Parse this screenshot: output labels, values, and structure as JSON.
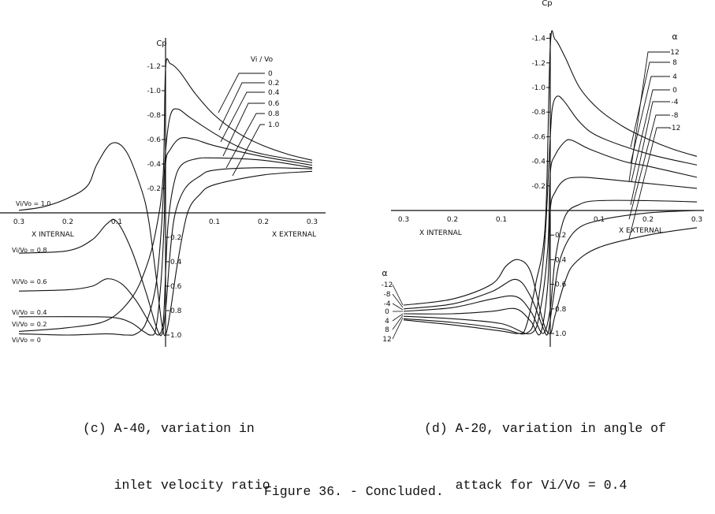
{
  "chart_data": [
    {
      "type": "line",
      "caption": [
        "(c) A-40, variation in",
        "    inlet velocity ratio"
      ],
      "ylabel": "Cp",
      "x_labels": {
        "internal": "X INTERNAL",
        "external": "X EXTERNAL"
      },
      "x_ticks": {
        "internal": [
          "0.3",
          "0.2",
          "0.1"
        ],
        "external": [
          "0.1",
          "0.2",
          "0.3"
        ]
      },
      "y_ticks_negative": [
        "-1.2",
        "-1.0",
        "-0.8",
        "-0.6",
        "-0.4",
        "-0.2"
      ],
      "y_ticks_positive": [
        "0.2",
        "0.4",
        "0.6",
        "0.8",
        "1.0"
      ],
      "xlim": [
        -0.3,
        0.3
      ],
      "ylim": [
        1.0,
        -1.3
      ],
      "y_inverted": true,
      "x_note": "negative x = internal side, positive x = external side",
      "legend_title": "Vi / Vo",
      "legend_values": [
        "0",
        "0.2",
        "0.4",
        "0.6",
        "0.8",
        "1.0"
      ],
      "internal_labels": [
        "Vi/Vo = 1.0",
        "Vi/Vo = 0.8",
        "Vi/Vo = 0.6",
        "Vi/Vo = 0.4",
        "Vi/Vo = 0.2",
        "Vi/Vo = 0"
      ],
      "series": [
        {
          "name": "0",
          "points": [
            [
              -0.3,
              0.97
            ],
            [
              -0.2,
              0.94
            ],
            [
              -0.12,
              0.88
            ],
            [
              -0.07,
              0.7
            ],
            [
              -0.04,
              0.45
            ],
            [
              -0.02,
              0.15
            ],
            [
              -0.005,
              -0.3
            ],
            [
              0,
              -1.18
            ],
            [
              0.01,
              -1.22
            ],
            [
              0.03,
              -1.15
            ],
            [
              0.06,
              -0.98
            ],
            [
              0.1,
              -0.8
            ],
            [
              0.15,
              -0.65
            ],
            [
              0.2,
              -0.55
            ],
            [
              0.25,
              -0.48
            ],
            [
              0.3,
              -0.43
            ]
          ]
        },
        {
          "name": "0.2",
          "points": [
            [
              -0.3,
              0.99
            ],
            [
              -0.2,
              1.0
            ],
            [
              -0.12,
              0.99
            ],
            [
              -0.08,
              1.0
            ],
            [
              -0.06,
              0.99
            ],
            [
              -0.04,
              0.9
            ],
            [
              -0.02,
              0.6
            ],
            [
              -0.008,
              0.1
            ],
            [
              0,
              -0.5
            ],
            [
              0.01,
              -0.8
            ],
            [
              0.025,
              -0.85
            ],
            [
              0.05,
              -0.78
            ],
            [
              0.1,
              -0.65
            ],
            [
              0.15,
              -0.54
            ],
            [
              0.2,
              -0.48
            ],
            [
              0.3,
              -0.41
            ]
          ]
        },
        {
          "name": "0.4",
          "points": [
            [
              -0.3,
              0.85
            ],
            [
              -0.15,
              0.85
            ],
            [
              -0.1,
              0.86
            ],
            [
              -0.07,
              0.9
            ],
            [
              -0.045,
              0.97
            ],
            [
              -0.03,
              1.0
            ],
            [
              -0.02,
              0.95
            ],
            [
              -0.01,
              0.6
            ],
            [
              -0.003,
              0.1
            ],
            [
              0,
              -0.4
            ],
            [
              0.01,
              -0.52
            ],
            [
              0.03,
              -0.61
            ],
            [
              0.06,
              -0.6
            ],
            [
              0.1,
              -0.55
            ],
            [
              0.2,
              -0.46
            ],
            [
              0.3,
              -0.39
            ]
          ]
        },
        {
          "name": "0.6",
          "points": [
            [
              -0.3,
              0.64
            ],
            [
              -0.2,
              0.63
            ],
            [
              -0.15,
              0.6
            ],
            [
              -0.12,
              0.54
            ],
            [
              -0.09,
              0.58
            ],
            [
              -0.06,
              0.72
            ],
            [
              -0.03,
              0.92
            ],
            [
              -0.015,
              1.0
            ],
            [
              -0.005,
              0.9
            ],
            [
              0,
              0.5
            ],
            [
              0.005,
              0.1
            ],
            [
              0.015,
              -0.2
            ],
            [
              0.03,
              -0.38
            ],
            [
              0.06,
              -0.44
            ],
            [
              0.1,
              -0.45
            ],
            [
              0.2,
              -0.43
            ],
            [
              0.3,
              -0.37
            ]
          ]
        },
        {
          "name": "0.8",
          "points": [
            [
              -0.3,
              0.33
            ],
            [
              -0.2,
              0.31
            ],
            [
              -0.15,
              0.22
            ],
            [
              -0.12,
              0.09
            ],
            [
              -0.1,
              0.07
            ],
            [
              -0.07,
              0.3
            ],
            [
              -0.04,
              0.65
            ],
            [
              -0.02,
              0.92
            ],
            [
              -0.008,
              1.0
            ],
            [
              0,
              0.8
            ],
            [
              0.01,
              0.3
            ],
            [
              0.02,
              0.0
            ],
            [
              0.04,
              -0.2
            ],
            [
              0.07,
              -0.3
            ],
            [
              0.1,
              -0.35
            ],
            [
              0.2,
              -0.37
            ],
            [
              0.3,
              -0.36
            ]
          ]
        },
        {
          "name": "1.0",
          "points": [
            [
              -0.3,
              -0.02
            ],
            [
              -0.25,
              -0.05
            ],
            [
              -0.2,
              -0.12
            ],
            [
              -0.16,
              -0.22
            ],
            [
              -0.14,
              -0.4
            ],
            [
              -0.11,
              -0.57
            ],
            [
              -0.08,
              -0.5
            ],
            [
              -0.05,
              -0.2
            ],
            [
              -0.035,
              0.05
            ],
            [
              -0.02,
              0.5
            ],
            [
              -0.008,
              0.9
            ],
            [
              0,
              1.0
            ],
            [
              0.01,
              0.8
            ],
            [
              0.025,
              0.4
            ],
            [
              0.045,
              0.0
            ],
            [
              0.07,
              -0.15
            ],
            [
              0.1,
              -0.23
            ],
            [
              0.2,
              -0.31
            ],
            [
              0.3,
              -0.34
            ]
          ]
        }
      ]
    },
    {
      "type": "line",
      "caption": [
        "(d) A-20, variation in angle of",
        "    attack for Vi/Vo = 0.4"
      ],
      "ylabel": "Cp",
      "x_labels": {
        "internal": "X INTERNAL",
        "external": "X EXTERNAL"
      },
      "x_ticks": {
        "internal": [
          "0.3",
          "0.2",
          "0.1"
        ],
        "external": [
          "0.1",
          "0.2",
          "0.3"
        ]
      },
      "y_ticks_negative": [
        "-1.4",
        "-1.2",
        "-1.0",
        "-0.8",
        "-0.6",
        "-0.4",
        "-0.2"
      ],
      "y_ticks_positive": [
        "0.2",
        "0.4",
        "0.6",
        "0.8",
        "1.0"
      ],
      "xlim": [
        -0.3,
        0.3
      ],
      "ylim": [
        1.0,
        -1.45
      ],
      "y_inverted": true,
      "legend_title": "α",
      "legend_values": [
        "12",
        "8",
        "4",
        "0",
        "-4",
        "-8",
        "-12"
      ],
      "internal_legend_title": "α",
      "internal_legend_values": [
        "-12",
        "-8",
        "-4",
        "0",
        "4",
        "8",
        "12"
      ],
      "series": [
        {
          "name": "12",
          "points": [
            [
              -0.3,
              0.89
            ],
            [
              -0.2,
              0.93
            ],
            [
              -0.1,
              0.98
            ],
            [
              -0.065,
              1.0
            ],
            [
              -0.05,
              0.95
            ],
            [
              -0.03,
              0.6
            ],
            [
              -0.01,
              0.1
            ],
            [
              0,
              -1.33
            ],
            [
              0.01,
              -1.39
            ],
            [
              0.03,
              -1.25
            ],
            [
              0.06,
              -1.0
            ],
            [
              0.1,
              -0.82
            ],
            [
              0.15,
              -0.68
            ],
            [
              0.2,
              -0.58
            ],
            [
              0.25,
              -0.5
            ],
            [
              0.3,
              -0.44
            ]
          ]
        },
        {
          "name": "8",
          "points": [
            [
              -0.3,
              0.88
            ],
            [
              -0.2,
              0.91
            ],
            [
              -0.1,
              0.96
            ],
            [
              -0.05,
              1.0
            ],
            [
              -0.03,
              0.85
            ],
            [
              -0.012,
              0.3
            ],
            [
              0,
              -0.6
            ],
            [
              0.005,
              -0.85
            ],
            [
              0.015,
              -0.93
            ],
            [
              0.03,
              -0.88
            ],
            [
              0.06,
              -0.72
            ],
            [
              0.1,
              -0.6
            ],
            [
              0.2,
              -0.46
            ],
            [
              0.3,
              -0.37
            ]
          ]
        },
        {
          "name": "4",
          "points": [
            [
              -0.3,
              0.86
            ],
            [
              -0.2,
              0.88
            ],
            [
              -0.1,
              0.92
            ],
            [
              -0.04,
              1.0
            ],
            [
              -0.02,
              0.8
            ],
            [
              -0.005,
              0.3
            ],
            [
              0,
              -0.3
            ],
            [
              0.01,
              -0.45
            ],
            [
              0.03,
              -0.56
            ],
            [
              0.045,
              -0.57
            ],
            [
              0.08,
              -0.5
            ],
            [
              0.15,
              -0.4
            ],
            [
              0.2,
              -0.36
            ],
            [
              0.3,
              -0.27
            ]
          ]
        },
        {
          "name": "0",
          "points": [
            [
              -0.3,
              0.84
            ],
            [
              -0.2,
              0.84
            ],
            [
              -0.12,
              0.82
            ],
            [
              -0.07,
              0.8
            ],
            [
              -0.04,
              0.9
            ],
            [
              -0.02,
              1.0
            ],
            [
              -0.005,
              0.6
            ],
            [
              0,
              0.0
            ],
            [
              0.01,
              -0.15
            ],
            [
              0.03,
              -0.25
            ],
            [
              0.06,
              -0.27
            ],
            [
              0.1,
              -0.26
            ],
            [
              0.2,
              -0.22
            ],
            [
              0.3,
              -0.18
            ]
          ]
        },
        {
          "name": "-4",
          "points": [
            [
              -0.3,
              0.82
            ],
            [
              -0.2,
              0.79
            ],
            [
              -0.12,
              0.72
            ],
            [
              -0.07,
              0.7
            ],
            [
              -0.04,
              0.82
            ],
            [
              -0.015,
              1.0
            ],
            [
              0,
              0.8
            ],
            [
              0.01,
              0.4
            ],
            [
              0.03,
              0.05
            ],
            [
              0.06,
              -0.05
            ],
            [
              0.1,
              -0.08
            ],
            [
              0.2,
              -0.08
            ],
            [
              0.3,
              -0.07
            ]
          ]
        },
        {
          "name": "-8",
          "points": [
            [
              -0.3,
              0.8
            ],
            [
              -0.2,
              0.76
            ],
            [
              -0.12,
              0.66
            ],
            [
              -0.07,
              0.56
            ],
            [
              -0.04,
              0.7
            ],
            [
              -0.015,
              0.95
            ],
            [
              -0.005,
              1.0
            ],
            [
              0.005,
              0.75
            ],
            [
              0.02,
              0.4
            ],
            [
              0.05,
              0.17
            ],
            [
              0.1,
              0.08
            ],
            [
              0.2,
              0.02
            ],
            [
              0.3,
              0.0
            ]
          ]
        },
        {
          "name": "-12",
          "points": [
            [
              -0.3,
              0.77
            ],
            [
              -0.2,
              0.72
            ],
            [
              -0.12,
              0.6
            ],
            [
              -0.09,
              0.45
            ],
            [
              -0.065,
              0.4
            ],
            [
              -0.04,
              0.5
            ],
            [
              -0.015,
              0.9
            ],
            [
              0,
              1.0
            ],
            [
              0.01,
              0.85
            ],
            [
              0.03,
              0.58
            ],
            [
              0.05,
              0.43
            ],
            [
              0.1,
              0.3
            ],
            [
              0.2,
              0.2
            ],
            [
              0.3,
              0.14
            ]
          ]
        }
      ]
    }
  ],
  "figure_caption": "Figure 36. - Concluded."
}
